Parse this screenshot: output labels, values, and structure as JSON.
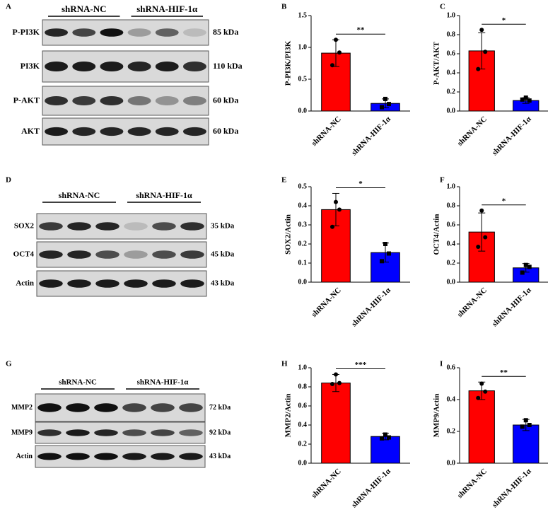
{
  "chart_data": [
    {
      "type": "bar",
      "panel": "B",
      "ylabel": "P-PI3K/PI3K",
      "categories": [
        "shRNA-NC",
        "shRNA-HIF-1α"
      ],
      "values": [
        0.91,
        0.12
      ],
      "errors": [
        0.21,
        0.07
      ],
      "points": [
        [
          1.12,
          0.92,
          0.72
        ],
        [
          0.19,
          0.11,
          0.06
        ]
      ],
      "colors": [
        "#ff0000",
        "#0000ff"
      ],
      "ylim": [
        0,
        1.5
      ],
      "yticks": [
        {
          "value": 0,
          "label": "0.0"
        },
        0.5,
        {
          "value": 1,
          "label": "1.0"
        },
        1.5
      ],
      "significance": "**"
    },
    {
      "type": "bar",
      "panel": "C",
      "ylabel": "P-AKT/AKT",
      "categories": [
        "shRNA-NC",
        "shRNA-HIF-1α"
      ],
      "values": [
        0.63,
        0.11
      ],
      "errors": [
        0.19,
        0.03
      ],
      "points": [
        [
          0.85,
          0.62,
          0.44
        ],
        [
          0.14,
          0.11,
          0.12
        ]
      ],
      "colors": [
        "#ff0000",
        "#0000ff"
      ],
      "ylim": [
        0,
        1
      ],
      "yticks": [
        {
          "value": 0,
          "label": "0.0"
        },
        0.2,
        0.4,
        0.6,
        0.8,
        {
          "value": 1,
          "label": "1.0"
        }
      ],
      "significance": "*"
    },
    {
      "type": "bar",
      "panel": "E",
      "ylabel": "SOX2/Actin",
      "categories": [
        "shRNA-NC",
        "shRNA-HIF-1α"
      ],
      "values": [
        0.38,
        0.155
      ],
      "errors": [
        0.085,
        0.05
      ],
      "points": [
        [
          0.42,
          0.38,
          0.29
        ],
        [
          0.2,
          0.15,
          0.11
        ]
      ],
      "colors": [
        "#ff0000",
        "#0000ff"
      ],
      "ylim": [
        0,
        0.5
      ],
      "yticks": [
        {
          "value": 0,
          "label": "0.0"
        },
        0.1,
        0.2,
        0.3,
        0.4,
        0.5
      ],
      "significance": "*"
    },
    {
      "type": "bar",
      "panel": "F",
      "ylabel": "OCT4/Actin",
      "categories": [
        "shRNA-NC",
        "shRNA-HIF-1α"
      ],
      "values": [
        0.525,
        0.15
      ],
      "errors": [
        0.2,
        0.045
      ],
      "points": [
        [
          0.75,
          0.47,
          0.37
        ],
        [
          0.18,
          0.16,
          0.1
        ]
      ],
      "colors": [
        "#ff0000",
        "#0000ff"
      ],
      "ylim": [
        0,
        1
      ],
      "yticks": [
        {
          "value": 0,
          "label": "0.0"
        },
        0.2,
        0.4,
        0.6,
        0.8,
        {
          "value": 1,
          "label": "1.0"
        }
      ],
      "significance": "*"
    },
    {
      "type": "bar",
      "panel": "H",
      "ylabel": "MMP2/Actin",
      "categories": [
        "shRNA-NC",
        "shRNA-HIF-1α"
      ],
      "values": [
        0.84,
        0.28
      ],
      "errors": [
        0.09,
        0.035
      ],
      "points": [
        [
          0.93,
          0.84,
          0.83
        ],
        [
          0.3,
          0.27,
          0.26
        ]
      ],
      "colors": [
        "#ff0000",
        "#0000ff"
      ],
      "ylim": [
        0,
        1
      ],
      "yticks": [
        {
          "value": 0,
          "label": "0.0"
        },
        0.2,
        0.4,
        0.6,
        0.8,
        {
          "value": 1,
          "label": "1.0"
        }
      ],
      "significance": "***"
    },
    {
      "type": "bar",
      "panel": "I",
      "ylabel": "MMP9/Actin",
      "categories": [
        "shRNA-NC",
        "shRNA-HIF-1α"
      ],
      "values": [
        0.455,
        0.24
      ],
      "errors": [
        0.055,
        0.035
      ],
      "points": [
        [
          0.5,
          0.45,
          0.41
        ],
        [
          0.27,
          0.24,
          0.23
        ]
      ],
      "colors": [
        "#ff0000",
        "#0000ff"
      ],
      "ylim": [
        0,
        0.6
      ],
      "yticks": [
        {
          "value": 0,
          "label": "0.0"
        },
        0.2,
        0.4,
        0.6
      ],
      "significance": "**"
    }
  ],
  "blots": [
    {
      "panel": "A",
      "groups": [
        "shRNA-NC",
        "shRNA-HIF-1α"
      ],
      "rows": [
        {
          "label": "P-PI3K",
          "size": "85 kDa"
        },
        {
          "label": "PI3K",
          "size": "110 kDa"
        },
        {
          "label": "P-AKT",
          "size": "60 kDa"
        },
        {
          "label": "AKT",
          "size": "60 kDa"
        }
      ]
    },
    {
      "panel": "D",
      "groups": [
        "shRNA-NC",
        "shRNA-HIF-1α"
      ],
      "rows": [
        {
          "label": "SOX2",
          "size": "35 kDa"
        },
        {
          "label": "OCT4",
          "size": "45 kDa"
        },
        {
          "label": "Actin",
          "size": "43 kDa"
        }
      ]
    },
    {
      "panel": "G",
      "groups": [
        "shRNA-NC",
        "shRNA-HIF-1α"
      ],
      "rows": [
        {
          "label": "MMP2",
          "size": "72 kDa"
        },
        {
          "label": "MMP9",
          "size": "92 kDa"
        },
        {
          "label": "Actin",
          "size": "43 kDa"
        }
      ]
    }
  ]
}
